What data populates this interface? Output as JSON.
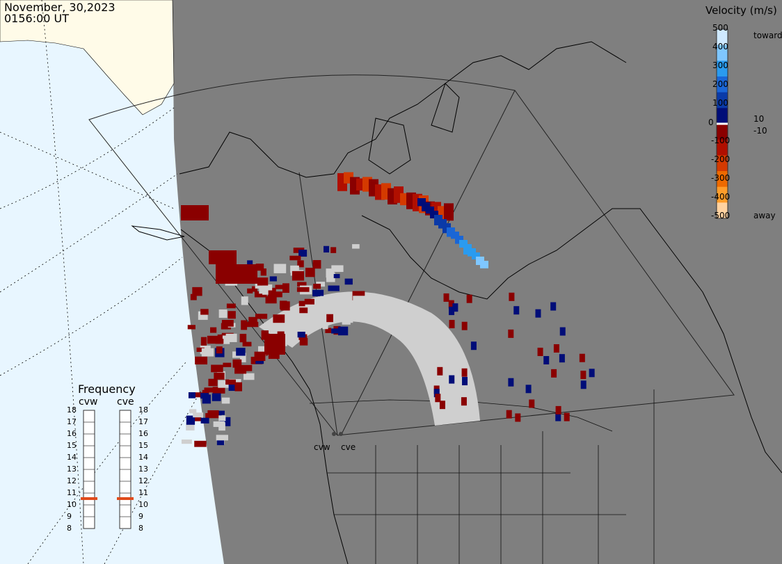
{
  "header": {
    "date": "November, 30,2023",
    "time": "0156:00 UT"
  },
  "velocity_scale": {
    "title": "Velocity (m/s)",
    "toward_label": "toward",
    "away_label": "away",
    "ticks": [
      "500",
      "400",
      "300",
      "200",
      "100",
      "10",
      "0",
      "-10",
      "-100",
      "-200",
      "-300",
      "-400",
      "-500"
    ],
    "colors": [
      "#cfe9ff",
      "#7fc7ff",
      "#2a9bef",
      "#1a66d6",
      "#0a3aa8",
      "#000d78",
      "#8a0000",
      "#b00f00",
      "#d43a00",
      "#ee6a00",
      "#ff9d2a",
      "#ffd2a0"
    ]
  },
  "frequency_panel": {
    "title": "Frequency",
    "radars": [
      "cvw",
      "cve"
    ],
    "scale": [
      "18",
      "17",
      "16",
      "15",
      "14",
      "13",
      "12",
      "11",
      "10",
      "9",
      "8"
    ],
    "selected_mhz": [
      11,
      11
    ],
    "marker_color": "#e04a1a"
  },
  "map": {
    "radar_labels": [
      "cvw",
      "cve"
    ],
    "colors": {
      "ocean": "#e8f6ff",
      "land_outside": "#fffbe8",
      "night": "#7f7f7f",
      "ground_scatter": "#cfcfcf",
      "coast": "#000000"
    }
  }
}
